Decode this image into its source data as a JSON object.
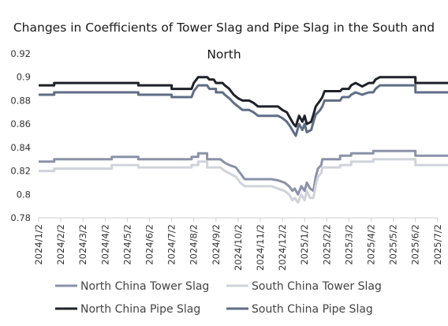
{
  "chart_data": {
    "type": "line",
    "title": "Changes in Coefficients of Tower Slag and Pipe Slag in the South and North",
    "xlabel": "",
    "ylabel": "",
    "ylim": [
      0.78,
      0.92
    ],
    "yticks": [
      "0.78",
      "0.8",
      "0.82",
      "0.84",
      "0.86",
      "0.88",
      "0.9",
      "0.92"
    ],
    "categories": [
      "2024/1/2",
      "2024/2/2",
      "2024/3/2",
      "2024/4/2",
      "2024/5/2",
      "2024/6/2",
      "2024/7/2",
      "2024/8/2",
      "2024/9/2",
      "2024/10/2",
      "2024/11/2",
      "2024/12/2",
      "2025/1/2",
      "2025/2/2",
      "2025/3/2",
      "2025/4/2",
      "2025/5/2",
      "2025/6/2",
      "2025/7/2"
    ],
    "xlim": [
      0,
      18.8
    ],
    "grid": false,
    "legend_position": "bottom",
    "series": [
      {
        "name": "North China Tower Slag",
        "color": "#8b92a8",
        "points": [
          [
            0,
            0.828
          ],
          [
            0.7,
            0.828
          ],
          [
            0.7,
            0.83
          ],
          [
            3.3,
            0.83
          ],
          [
            3.3,
            0.832
          ],
          [
            4.5,
            0.832
          ],
          [
            4.5,
            0.83
          ],
          [
            6.9,
            0.83
          ],
          [
            6.9,
            0.832
          ],
          [
            7.2,
            0.832
          ],
          [
            7.2,
            0.835
          ],
          [
            7.6,
            0.835
          ],
          [
            7.6,
            0.83
          ],
          [
            8.2,
            0.83
          ],
          [
            8.4,
            0.827
          ],
          [
            8.6,
            0.825
          ],
          [
            8.9,
            0.823
          ],
          [
            9.1,
            0.818
          ],
          [
            9.3,
            0.813
          ],
          [
            10.5,
            0.813
          ],
          [
            10.8,
            0.812
          ],
          [
            11.1,
            0.81
          ],
          [
            11.3,
            0.807
          ],
          [
            11.45,
            0.803
          ],
          [
            11.55,
            0.805
          ],
          [
            11.7,
            0.8
          ],
          [
            11.85,
            0.807
          ],
          [
            12.0,
            0.803
          ],
          [
            12.1,
            0.81
          ],
          [
            12.25,
            0.805
          ],
          [
            12.4,
            0.803
          ],
          [
            12.5,
            0.815
          ],
          [
            12.6,
            0.822
          ],
          [
            12.75,
            0.825
          ],
          [
            12.8,
            0.83
          ],
          [
            13.6,
            0.83
          ],
          [
            13.6,
            0.833
          ],
          [
            14.1,
            0.833
          ],
          [
            14.1,
            0.835
          ],
          [
            15.1,
            0.835
          ],
          [
            15.1,
            0.837
          ],
          [
            17.0,
            0.837
          ],
          [
            17.0,
            0.833
          ],
          [
            18.8,
            0.833
          ]
        ]
      },
      {
        "name": "South China Tower Slag",
        "color": "#d0d3da",
        "points": [
          [
            0,
            0.82
          ],
          [
            0.7,
            0.82
          ],
          [
            0.7,
            0.822
          ],
          [
            3.3,
            0.822
          ],
          [
            3.3,
            0.825
          ],
          [
            4.5,
            0.825
          ],
          [
            4.5,
            0.823
          ],
          [
            6.9,
            0.823
          ],
          [
            6.9,
            0.825
          ],
          [
            7.2,
            0.825
          ],
          [
            7.2,
            0.828
          ],
          [
            7.6,
            0.828
          ],
          [
            7.6,
            0.823
          ],
          [
            8.2,
            0.823
          ],
          [
            8.4,
            0.82
          ],
          [
            8.6,
            0.818
          ],
          [
            8.9,
            0.815
          ],
          [
            9.1,
            0.81
          ],
          [
            9.3,
            0.807
          ],
          [
            10.5,
            0.807
          ],
          [
            10.8,
            0.805
          ],
          [
            11.1,
            0.803
          ],
          [
            11.3,
            0.8
          ],
          [
            11.45,
            0.795
          ],
          [
            11.55,
            0.797
          ],
          [
            11.7,
            0.793
          ],
          [
            11.85,
            0.8
          ],
          [
            12.0,
            0.795
          ],
          [
            12.1,
            0.803
          ],
          [
            12.25,
            0.797
          ],
          [
            12.4,
            0.797
          ],
          [
            12.5,
            0.808
          ],
          [
            12.6,
            0.815
          ],
          [
            12.75,
            0.818
          ],
          [
            12.8,
            0.823
          ],
          [
            13.6,
            0.823
          ],
          [
            13.6,
            0.825
          ],
          [
            14.1,
            0.825
          ],
          [
            14.1,
            0.828
          ],
          [
            15.1,
            0.828
          ],
          [
            15.1,
            0.83
          ],
          [
            17.0,
            0.83
          ],
          [
            17.0,
            0.825
          ],
          [
            18.8,
            0.825
          ]
        ]
      },
      {
        "name": "North China Pipe Slag",
        "color": "#1e2128",
        "points": [
          [
            0,
            0.893
          ],
          [
            0.7,
            0.893
          ],
          [
            0.7,
            0.895
          ],
          [
            4.5,
            0.895
          ],
          [
            4.5,
            0.893
          ],
          [
            6.0,
            0.893
          ],
          [
            6.0,
            0.89
          ],
          [
            6.9,
            0.89
          ],
          [
            7.0,
            0.895
          ],
          [
            7.2,
            0.9
          ],
          [
            7.6,
            0.9
          ],
          [
            7.7,
            0.898
          ],
          [
            7.9,
            0.898
          ],
          [
            8.0,
            0.895
          ],
          [
            8.3,
            0.895
          ],
          [
            8.4,
            0.893
          ],
          [
            8.6,
            0.89
          ],
          [
            8.8,
            0.885
          ],
          [
            9.0,
            0.882
          ],
          [
            9.2,
            0.88
          ],
          [
            9.5,
            0.88
          ],
          [
            9.7,
            0.878
          ],
          [
            9.9,
            0.875
          ],
          [
            10.8,
            0.875
          ],
          [
            11.0,
            0.872
          ],
          [
            11.2,
            0.87
          ],
          [
            11.35,
            0.865
          ],
          [
            11.5,
            0.86
          ],
          [
            11.6,
            0.858
          ],
          [
            11.75,
            0.867
          ],
          [
            11.9,
            0.862
          ],
          [
            12.0,
            0.867
          ],
          [
            12.1,
            0.86
          ],
          [
            12.3,
            0.862
          ],
          [
            12.4,
            0.868
          ],
          [
            12.5,
            0.875
          ],
          [
            12.7,
            0.88
          ],
          [
            12.8,
            0.883
          ],
          [
            12.9,
            0.888
          ],
          [
            13.6,
            0.888
          ],
          [
            13.7,
            0.89
          ],
          [
            14.0,
            0.89
          ],
          [
            14.1,
            0.893
          ],
          [
            14.3,
            0.895
          ],
          [
            14.6,
            0.892
          ],
          [
            14.9,
            0.895
          ],
          [
            15.1,
            0.895
          ],
          [
            15.2,
            0.898
          ],
          [
            15.4,
            0.9
          ],
          [
            17.0,
            0.9
          ],
          [
            17.0,
            0.895
          ],
          [
            18.8,
            0.895
          ]
        ]
      },
      {
        "name": "South China Pipe Slag",
        "color": "#5f6d86",
        "points": [
          [
            0,
            0.885
          ],
          [
            0.7,
            0.885
          ],
          [
            0.7,
            0.887
          ],
          [
            4.5,
            0.887
          ],
          [
            4.5,
            0.885
          ],
          [
            6.0,
            0.885
          ],
          [
            6.0,
            0.883
          ],
          [
            6.9,
            0.883
          ],
          [
            7.0,
            0.888
          ],
          [
            7.2,
            0.893
          ],
          [
            7.6,
            0.893
          ],
          [
            7.7,
            0.89
          ],
          [
            8.0,
            0.89
          ],
          [
            8.0,
            0.887
          ],
          [
            8.3,
            0.887
          ],
          [
            8.4,
            0.885
          ],
          [
            8.6,
            0.882
          ],
          [
            8.8,
            0.878
          ],
          [
            9.0,
            0.875
          ],
          [
            9.2,
            0.872
          ],
          [
            9.5,
            0.872
          ],
          [
            9.7,
            0.87
          ],
          [
            9.9,
            0.867
          ],
          [
            10.8,
            0.867
          ],
          [
            11.0,
            0.865
          ],
          [
            11.2,
            0.862
          ],
          [
            11.35,
            0.858
          ],
          [
            11.5,
            0.853
          ],
          [
            11.6,
            0.85
          ],
          [
            11.75,
            0.86
          ],
          [
            11.9,
            0.855
          ],
          [
            12.0,
            0.86
          ],
          [
            12.1,
            0.853
          ],
          [
            12.3,
            0.855
          ],
          [
            12.4,
            0.862
          ],
          [
            12.5,
            0.868
          ],
          [
            12.7,
            0.872
          ],
          [
            12.8,
            0.875
          ],
          [
            12.9,
            0.88
          ],
          [
            13.6,
            0.88
          ],
          [
            13.7,
            0.883
          ],
          [
            14.0,
            0.883
          ],
          [
            14.1,
            0.885
          ],
          [
            14.3,
            0.887
          ],
          [
            14.6,
            0.885
          ],
          [
            14.9,
            0.887
          ],
          [
            15.1,
            0.887
          ],
          [
            15.2,
            0.89
          ],
          [
            15.4,
            0.893
          ],
          [
            17.0,
            0.893
          ],
          [
            17.0,
            0.887
          ],
          [
            18.8,
            0.887
          ]
        ]
      }
    ]
  }
}
